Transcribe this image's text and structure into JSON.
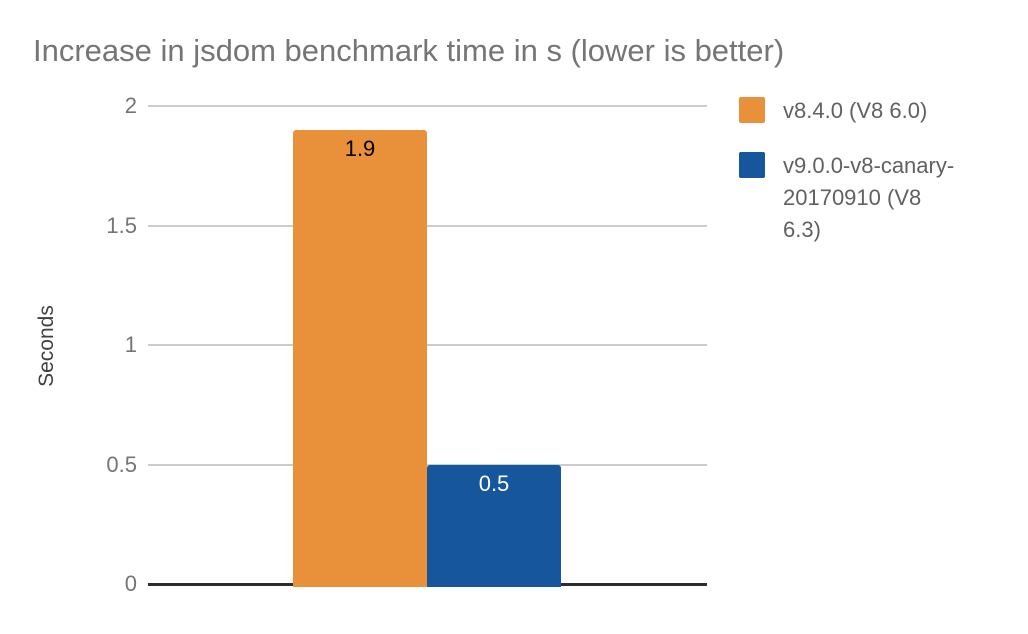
{
  "chart_data": {
    "type": "bar",
    "title": "Increase in jsdom benchmark time in s (lower is better)",
    "xlabel": "",
    "ylabel": "Seconds",
    "categories": [
      ""
    ],
    "series": [
      {
        "name": "v8.4.0 (V8 6.0)",
        "values": [
          1.9
        ],
        "data_label": "1.9",
        "color": "#e8913a",
        "data_label_color": "#000000"
      },
      {
        "name": "v9.0.0-v8-canary-20170910 (V8 6.3)",
        "values": [
          0.5
        ],
        "data_label": "0.5",
        "color": "#15569c",
        "data_label_color": "#ffffff"
      }
    ],
    "ylim": [
      0,
      2
    ],
    "yticks": [
      0,
      0.5,
      1,
      1.5,
      2
    ],
    "ytick_labels": [
      "0",
      "0.5",
      "1",
      "1.5",
      "2"
    ],
    "grid": true,
    "legend_position": "right",
    "colors": {
      "title_text": "#757575",
      "axis_title_text": "#404040",
      "tick_text": "#757575",
      "legend_text": "#616161",
      "gridline": "#cccccc",
      "axis_line": "#2d2d2d",
      "background": "#ffffff"
    }
  }
}
